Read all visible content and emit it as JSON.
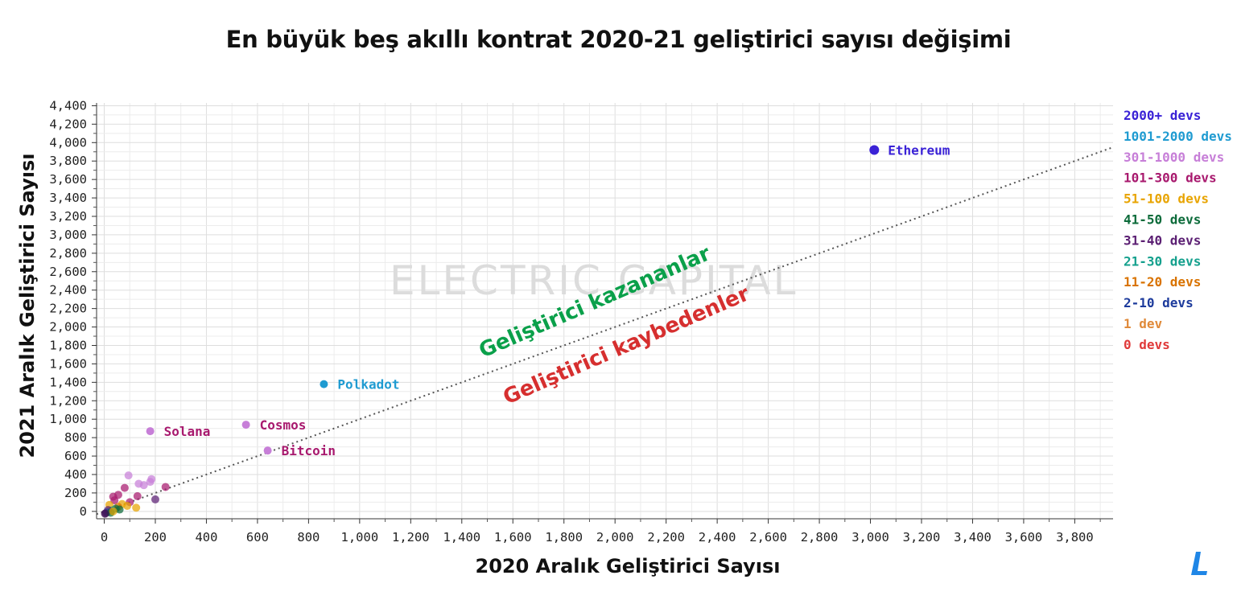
{
  "chart_data": {
    "type": "scatter",
    "title": "En büyük beş akıllı kontrat 2020-21 geliştirici sayısı değişimi",
    "xlabel": "2020 Aralık Geliştirici Sayısı",
    "ylabel": "2021 Aralık Geliştirici Sayısı",
    "xlim": [
      -30,
      3950
    ],
    "ylim": [
      -80,
      4430
    ],
    "xticks": [
      0,
      200,
      400,
      600,
      800,
      1000,
      1200,
      1400,
      1600,
      1800,
      2000,
      2200,
      2400,
      2600,
      2800,
      3000,
      3200,
      3400,
      3600,
      3800
    ],
    "xtick_labels": [
      "0",
      "200",
      "400",
      "600",
      "800",
      "1,000",
      "1,200",
      "1,400",
      "1,600",
      "1,800",
      "2,000",
      "2,200",
      "2,400",
      "2,600",
      "2,800",
      "3,000",
      "3,200",
      "3,400",
      "3,600",
      "3,800"
    ],
    "yticks": [
      0,
      200,
      400,
      600,
      800,
      1000,
      1200,
      1400,
      1600,
      1800,
      2000,
      2200,
      2400,
      2600,
      2800,
      3000,
      3200,
      3400,
      3600,
      3800,
      4000,
      4200,
      4400
    ],
    "ytick_labels": [
      "0",
      "200",
      "400",
      "600",
      "800",
      "1,000",
      "1,200",
      "1,400",
      "1,600",
      "1,800",
      "2,000",
      "2,200",
      "2,400",
      "2,600",
      "2,800",
      "3,000",
      "3,200",
      "3,400",
      "3,600",
      "3,800",
      "4,000",
      "4,200",
      "4,400"
    ],
    "grid": true,
    "reference_line": "y = x",
    "legend_position": "right",
    "legend": [
      {
        "label": "2000+ devs",
        "color": "#3a22d6"
      },
      {
        "label": "1001-2000 devs",
        "color": "#1f9bd1"
      },
      {
        "label": "301-1000 devs",
        "color": "#c77fd8"
      },
      {
        "label": "101-300 devs",
        "color": "#a8196e"
      },
      {
        "label": "51-100 devs",
        "color": "#e8a400"
      },
      {
        "label": "41-50 devs",
        "color": "#0c6b3a"
      },
      {
        "label": "31-40 devs",
        "color": "#5b1f73"
      },
      {
        "label": "21-30 devs",
        "color": "#14a08d"
      },
      {
        "label": "11-20 devs",
        "color": "#d97300"
      },
      {
        "label": "2-10 devs",
        "color": "#1d3b9c"
      },
      {
        "label": "1 dev",
        "color": "#e08a3a"
      },
      {
        "label": "0 devs",
        "color": "#e03a3a"
      }
    ],
    "labeled_points": [
      {
        "name": "Ethereum",
        "x": 3015,
        "y": 3920,
        "color": "#3a22d6",
        "label_color": "#3a22d6"
      },
      {
        "name": "Polkadot",
        "x": 860,
        "y": 1380,
        "color": "#1f9bd1",
        "label_color": "#1f9bd1"
      },
      {
        "name": "Solana",
        "x": 180,
        "y": 870,
        "color": "#c77fd8",
        "label_color": "#a8196e"
      },
      {
        "name": "Cosmos",
        "x": 555,
        "y": 940,
        "color": "#c77fd8",
        "label_color": "#a8196e"
      },
      {
        "name": "Bitcoin",
        "x": 640,
        "y": 660,
        "color": "#c77fd8",
        "label_color": "#a8196e"
      }
    ],
    "cluster_points": [
      {
        "x": 95,
        "y": 390,
        "color": "#c77fd8"
      },
      {
        "x": 185,
        "y": 350,
        "color": "#c77fd8"
      },
      {
        "x": 180,
        "y": 320,
        "color": "#c77fd8"
      },
      {
        "x": 135,
        "y": 300,
        "color": "#c77fd8"
      },
      {
        "x": 155,
        "y": 285,
        "color": "#c77fd8"
      },
      {
        "x": 240,
        "y": 265,
        "color": "#a8196e"
      },
      {
        "x": 80,
        "y": 255,
        "color": "#a8196e"
      },
      {
        "x": 55,
        "y": 180,
        "color": "#a8196e"
      },
      {
        "x": 35,
        "y": 160,
        "color": "#a8196e"
      },
      {
        "x": 40,
        "y": 120,
        "color": "#a8196e"
      },
      {
        "x": 100,
        "y": 100,
        "color": "#a8196e"
      },
      {
        "x": 130,
        "y": 165,
        "color": "#a8196e"
      },
      {
        "x": 200,
        "y": 130,
        "color": "#5b1f73"
      },
      {
        "x": 125,
        "y": 40,
        "color": "#e8a400"
      },
      {
        "x": 90,
        "y": 60,
        "color": "#e8a400"
      },
      {
        "x": 70,
        "y": 80,
        "color": "#e8a400"
      },
      {
        "x": 55,
        "y": 50,
        "color": "#d97300"
      },
      {
        "x": 20,
        "y": 70,
        "color": "#e8a400"
      },
      {
        "x": 45,
        "y": 30,
        "color": "#0c6b3a"
      },
      {
        "x": 30,
        "y": 10,
        "color": "#14a08d"
      },
      {
        "x": 60,
        "y": 20,
        "color": "#0c6b3a"
      },
      {
        "x": 15,
        "y": 15,
        "color": "#5b1f73"
      },
      {
        "x": 10,
        "y": -10,
        "color": "#1d3b9c"
      },
      {
        "x": 5,
        "y": -20,
        "color": "#5b1f73"
      },
      {
        "x": 25,
        "y": -15,
        "color": "#0c6b3a"
      },
      {
        "x": 35,
        "y": 0,
        "color": "#e8a400"
      },
      {
        "x": 3,
        "y": -25,
        "color": "#3a1050"
      }
    ]
  },
  "watermark": "ELECTRIC CAPITAL",
  "zone_labels": {
    "winners": {
      "text": "Geliştirici kazananlar",
      "color": "#0aa04a"
    },
    "losers": {
      "text": "Geliştirici kaybedenler",
      "color": "#d62f2f"
    }
  },
  "logo_icon": "electric-capital-logo-icon"
}
